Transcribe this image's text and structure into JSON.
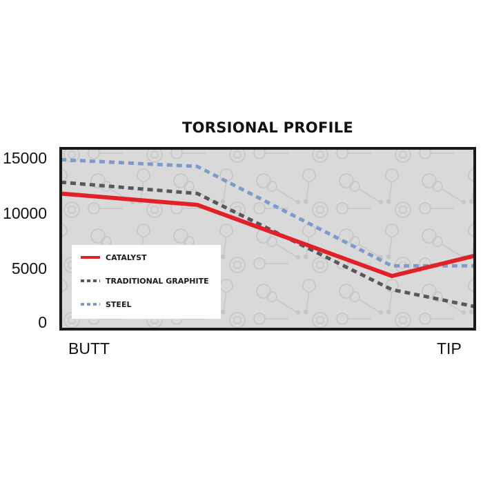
{
  "chart_data": {
    "type": "line",
    "title": "TORSIONAL PROFILE",
    "xlabel": "",
    "ylabel": "",
    "x_labels": [
      "BUTT",
      "TIP"
    ],
    "x": [
      0,
      0.33,
      0.8,
      1
    ],
    "ylim": [
      0,
      16000
    ],
    "yticks": [
      0,
      5000,
      10000,
      15000
    ],
    "grid": false,
    "legend_position": "bottom-left",
    "series": [
      {
        "name": "CATALYST",
        "color": "#e02127",
        "style": "solid",
        "values": [
          12000,
          11000,
          4700,
          6500
        ]
      },
      {
        "name": "TRADITIONAL GRAPHITE",
        "color": "#58585a",
        "style": "dotted",
        "values": [
          13000,
          12000,
          3500,
          2000
        ]
      },
      {
        "name": "STEEL",
        "color": "#7e9acb",
        "style": "dotted",
        "values": [
          15000,
          14400,
          5600,
          5600
        ]
      }
    ]
  },
  "colors": {
    "plot_background": "#d9d9d9",
    "frame": "#1a1a1a",
    "legend_background": "#ffffff"
  }
}
